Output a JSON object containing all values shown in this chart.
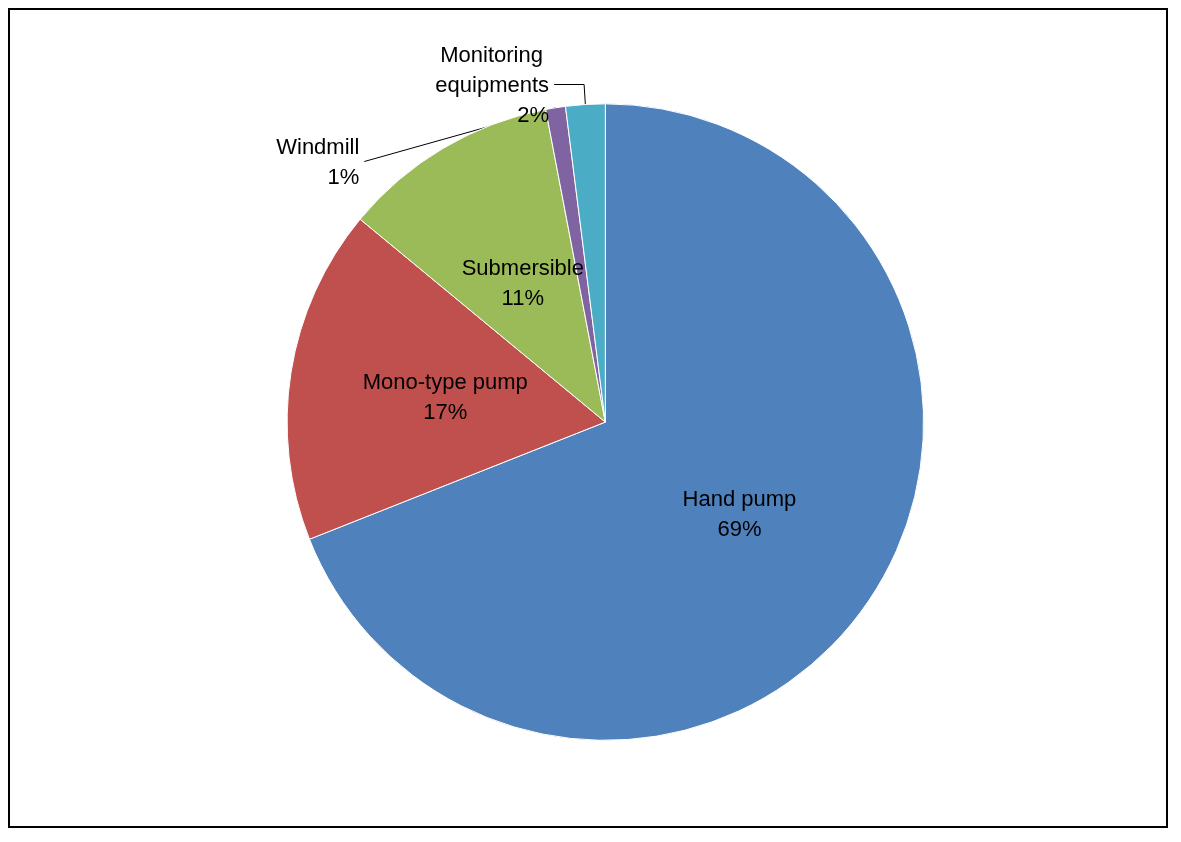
{
  "chart_data": {
    "type": "pie",
    "categories": [
      "Hand pump",
      "Mono-type pump",
      "Submersible",
      "Windmill",
      "Monitoring equipments"
    ],
    "values": [
      69,
      17,
      11,
      1,
      2
    ],
    "colors": [
      "#4f81bd",
      "#c0504d",
      "#9bbb59",
      "#8064a2",
      "#4bacc6"
    ],
    "value_labels": [
      "69%",
      "17%",
      "11%",
      "1%",
      "2%"
    ],
    "legend": false
  }
}
